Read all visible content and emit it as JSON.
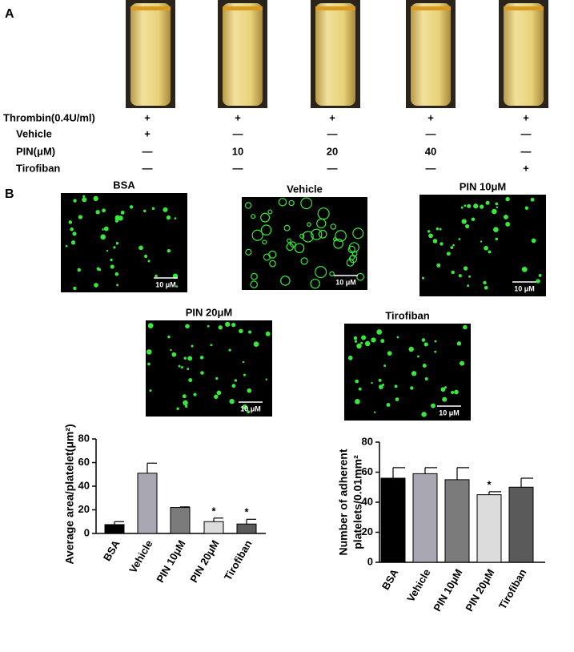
{
  "panel_a": {
    "label": "A",
    "rows": [
      {
        "name": "Thrombin(0.4U/ml)",
        "cells": [
          "+",
          "+",
          "+",
          "+",
          "+"
        ]
      },
      {
        "name": "Vehicle",
        "cells": [
          "+",
          "—",
          "—",
          "—",
          "—"
        ]
      },
      {
        "name": "PIN(μM)",
        "cells": [
          "—",
          "10",
          "20",
          "40",
          "—"
        ]
      },
      {
        "name": "Tirofiban",
        "cells": [
          "—",
          "—",
          "—",
          "—",
          "+"
        ]
      }
    ]
  },
  "panel_b": {
    "label": "B",
    "images": [
      {
        "title": "BSA",
        "scale": "10 μM"
      },
      {
        "title": "Vehicle",
        "scale": "10 μM"
      },
      {
        "title": "PIN 10μM",
        "scale": "10 μM"
      },
      {
        "title": "PIN 20μM",
        "scale": "10 μM"
      },
      {
        "title": "Tirofiban",
        "scale": "10 μM"
      }
    ]
  },
  "chart_data": [
    {
      "type": "bar",
      "y_label": "Average area/platelet(μm²)",
      "categories": [
        "BSA",
        "Vehicle",
        "PIN 10μM",
        "PIN 20μM",
        "Tirofiban"
      ],
      "values": [
        7.5,
        51,
        22,
        10,
        8
      ],
      "errors": [
        2.5,
        8.5,
        0.5,
        3,
        4
      ],
      "significance": [
        null,
        null,
        null,
        "*",
        "*"
      ],
      "colors": [
        "#000000",
        "#a9a7b2",
        "#7b7b7b",
        "#dcdcdc",
        "#5a5a5a"
      ],
      "ylim": [
        0,
        80
      ],
      "yticks": [
        0,
        20,
        40,
        60,
        80
      ]
    },
    {
      "type": "bar",
      "y_label": [
        "Number of adherent",
        "platelets/0.01mm²"
      ],
      "categories": [
        "BSA",
        "Vehicle",
        "PIN 10μM",
        "PIN 20μM",
        "Tirofiban"
      ],
      "values": [
        56,
        59,
        55,
        45,
        50
      ],
      "errors": [
        7,
        4,
        8,
        2,
        6
      ],
      "significance": [
        null,
        null,
        null,
        "*",
        null
      ],
      "colors": [
        "#000000",
        "#a9a7b2",
        "#7b7b7b",
        "#dcdcdc",
        "#5a5a5a"
      ],
      "ylim": [
        0,
        80
      ],
      "yticks": [
        0,
        20,
        40,
        60,
        80
      ]
    }
  ]
}
